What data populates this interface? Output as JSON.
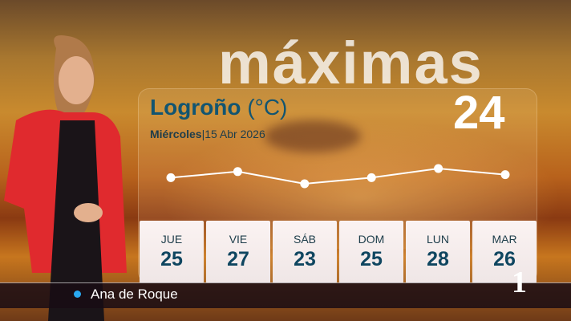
{
  "header": {
    "title": "máximas",
    "city": "Logroño",
    "unit": "(°C)",
    "date_day": "Miércoles",
    "date": "15 Abr 2026",
    "today_max": "24"
  },
  "chart_data": {
    "type": "line",
    "categories": [
      "JUE",
      "VIE",
      "SÁB",
      "DOM",
      "LUN",
      "MAR"
    ],
    "values": [
      25,
      27,
      23,
      25,
      28,
      26
    ],
    "grid": false
  },
  "days": [
    {
      "label": "JUE",
      "temp": "25"
    },
    {
      "label": "VIE",
      "temp": "27"
    },
    {
      "label": "SÁB",
      "temp": "23"
    },
    {
      "label": "DOM",
      "temp": "25"
    },
    {
      "label": "LUN",
      "temp": "28"
    },
    {
      "label": "MAR",
      "temp": "26"
    }
  ],
  "lower_third": {
    "name": "Ana de Roque",
    "dot_color": "#29a8f0"
  },
  "channel_logo": "1"
}
